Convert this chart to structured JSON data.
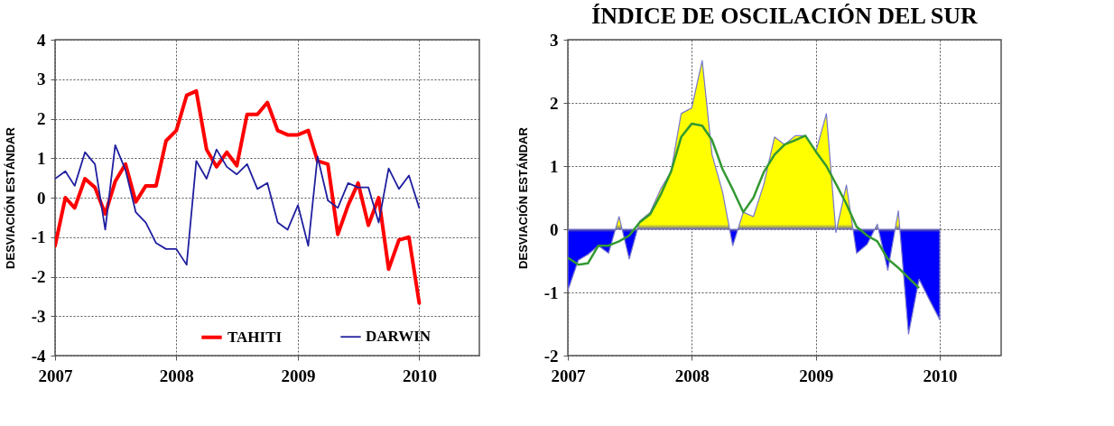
{
  "chart_data": [
    {
      "type": "line",
      "ylabel": "DESVIACIÓN ESTÁNDAR",
      "x": [
        "2007-01",
        "2007-02",
        "2007-03",
        "2007-04",
        "2007-05",
        "2007-06",
        "2007-07",
        "2007-08",
        "2007-09",
        "2007-10",
        "2007-11",
        "2007-12",
        "2008-01",
        "2008-02",
        "2008-03",
        "2008-04",
        "2008-05",
        "2008-06",
        "2008-07",
        "2008-08",
        "2008-09",
        "2008-10",
        "2008-11",
        "2008-12",
        "2009-01",
        "2009-02",
        "2009-03",
        "2009-04",
        "2009-05",
        "2009-06",
        "2009-07",
        "2009-08",
        "2009-09",
        "2009-10",
        "2009-11",
        "2009-12",
        "2010-01"
      ],
      "series": [
        {
          "name": "TAHITI",
          "color": "#ff0000",
          "values": [
            -1.22,
            0.0,
            -0.26,
            0.48,
            0.26,
            -0.41,
            0.41,
            0.85,
            -0.11,
            0.3,
            0.3,
            1.44,
            1.7,
            2.59,
            2.7,
            1.22,
            0.78,
            1.15,
            0.81,
            2.11,
            2.11,
            2.41,
            1.7,
            1.59,
            1.59,
            1.7,
            0.93,
            0.85,
            -0.93,
            -0.19,
            0.37,
            -0.7,
            0.0,
            -1.81,
            -1.07,
            -1.0,
            -2.67
          ]
        },
        {
          "name": "DARWIN",
          "color": "#1f1f9f",
          "values": [
            0.48,
            0.67,
            0.3,
            1.15,
            0.85,
            -0.81,
            1.33,
            0.7,
            -0.37,
            -0.63,
            -1.15,
            -1.3,
            -1.3,
            -1.7,
            0.93,
            0.48,
            1.22,
            0.78,
            0.59,
            0.85,
            0.22,
            0.37,
            -0.63,
            -0.81,
            -0.19,
            -1.22,
            1.04,
            -0.07,
            -0.26,
            0.37,
            0.26,
            0.26,
            -0.63,
            0.74,
            0.22,
            0.56,
            -0.26
          ]
        }
      ],
      "xlim": [
        "2007-01",
        "2010-07"
      ],
      "xticks": [
        "2007",
        "2008",
        "2009",
        "2010"
      ],
      "ylim": [
        -4,
        4
      ],
      "yticks": [
        -4,
        -3,
        -2,
        -1,
        0,
        1,
        2,
        3,
        4
      ],
      "grid": true,
      "legend": "bottom"
    },
    {
      "type": "area",
      "title": "ÍNDICE DE OSCILACIÓN DEL SUR",
      "ylabel": "DESVIACIÓN ESTÁNDAR",
      "x": [
        "2007-01",
        "2007-02",
        "2007-03",
        "2007-04",
        "2007-05",
        "2007-06",
        "2007-07",
        "2007-08",
        "2007-09",
        "2007-10",
        "2007-11",
        "2007-12",
        "2008-01",
        "2008-02",
        "2008-03",
        "2008-04",
        "2008-05",
        "2008-06",
        "2008-07",
        "2008-08",
        "2008-09",
        "2008-10",
        "2008-11",
        "2008-12",
        "2009-01",
        "2009-02",
        "2009-03",
        "2009-04",
        "2009-05",
        "2009-06",
        "2009-07",
        "2009-08",
        "2009-09",
        "2009-10",
        "2009-11",
        "2009-12",
        "2010-01"
      ],
      "series": [
        {
          "type": "area",
          "colors": [
            "#0000ff",
            "#0000ff",
            "#0000ff",
            "#0000ff",
            "#0000ff",
            "#ffff00",
            "#0000ff",
            "#ffff00",
            "#ffff00",
            "#ffff00",
            "#ffff00",
            "#ffff00",
            "#ffff00",
            "#ffff00",
            "#ffff00",
            "#ffff00",
            "#0000ff",
            "#ffff00",
            "#ffff00",
            "#ffff00",
            "#ffff00",
            "#ffff00",
            "#ffff00",
            "#ffff00",
            "#ffff00",
            "#ffff00",
            "#0000ff",
            "#ffff00",
            "#0000ff",
            "#0000ff",
            "#ffff00",
            "#0000ff",
            "#ffff00",
            "#0000ff",
            "#0000ff",
            "#0000ff",
            "#0000ff"
          ],
          "values": [
            -0.97,
            -0.49,
            -0.4,
            -0.26,
            -0.38,
            0.2,
            -0.47,
            0.13,
            0.27,
            0.63,
            0.91,
            1.83,
            1.92,
            2.67,
            1.18,
            0.59,
            -0.26,
            0.27,
            0.2,
            0.72,
            1.46,
            1.34,
            1.48,
            1.48,
            1.23,
            1.83,
            -0.05,
            0.7,
            -0.38,
            -0.24,
            0.08,
            -0.65,
            0.29,
            -1.66,
            -0.79,
            -1.11,
            -1.43
          ]
        },
        {
          "type": "line",
          "color": "#339933",
          "values": [
            -0.45,
            -0.56,
            -0.54,
            -0.26,
            -0.26,
            -0.19,
            -0.1,
            0.11,
            0.24,
            0.54,
            0.91,
            1.46,
            1.67,
            1.64,
            1.41,
            0.95,
            0.63,
            0.27,
            0.5,
            0.91,
            1.18,
            1.34,
            1.41,
            1.48,
            1.23,
            1.0,
            0.72,
            0.4,
            0.04,
            -0.1,
            -0.19,
            -0.47,
            -0.61,
            -0.77,
            -0.93,
            null,
            null
          ]
        }
      ],
      "xlim": [
        "2007-01",
        "2010-07"
      ],
      "xticks": [
        "2007",
        "2008",
        "2009",
        "2010"
      ],
      "ylim": [
        -2,
        3
      ],
      "yticks": [
        -2,
        -1,
        0,
        1,
        2,
        3
      ],
      "grid": true
    }
  ]
}
